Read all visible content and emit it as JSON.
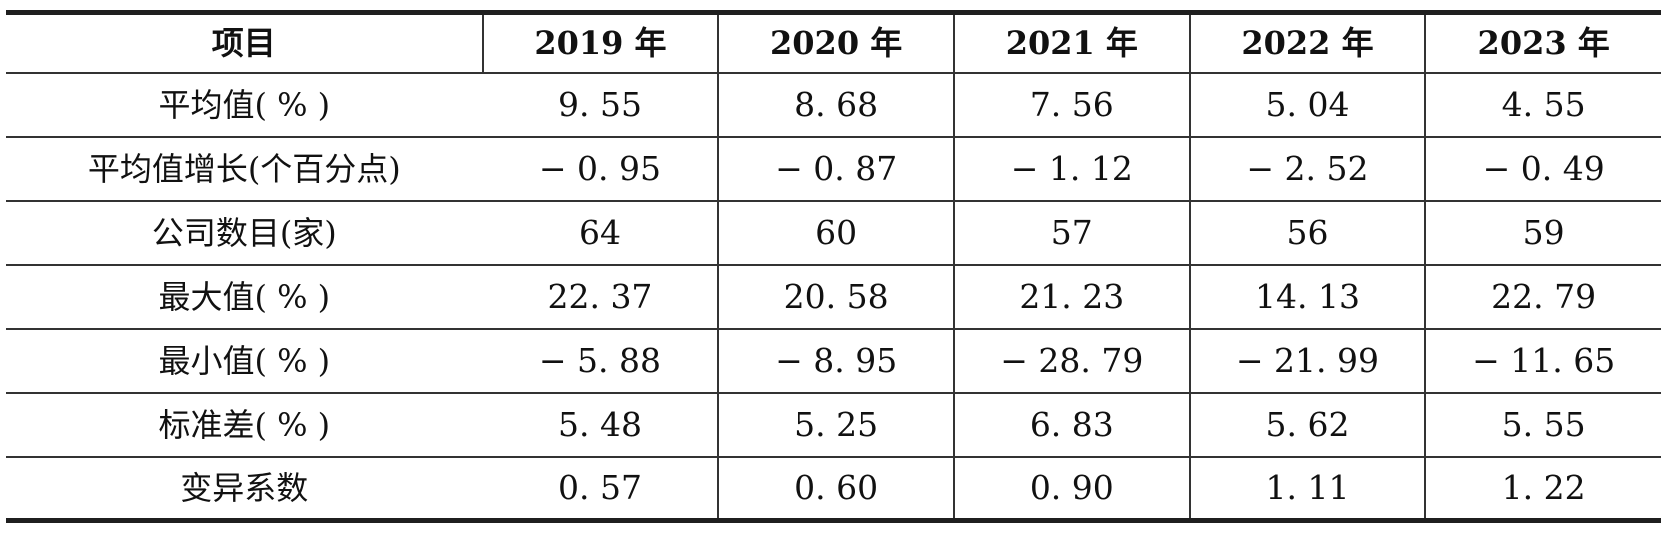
{
  "table": {
    "columns": [
      "项目",
      "2019 年",
      "2020 年",
      "2021 年",
      "2022 年",
      "2023 年"
    ],
    "rows": [
      {
        "label": "平均值( % )",
        "values": [
          "9. 55",
          "8. 68",
          "7. 56",
          "5. 04",
          "4. 55"
        ]
      },
      {
        "label": "平均值增长(个百分点)",
        "values": [
          "− 0. 95",
          "− 0. 87",
          "− 1. 12",
          "− 2. 52",
          "− 0. 49"
        ]
      },
      {
        "label": "公司数目(家)",
        "values": [
          "64",
          "60",
          "57",
          "56",
          "59"
        ]
      },
      {
        "label": "最大值( % )",
        "values": [
          "22. 37",
          "20. 58",
          "21. 23",
          "14. 13",
          "22. 79"
        ]
      },
      {
        "label": "最小值( % )",
        "values": [
          "− 5. 88",
          "− 8. 95",
          "− 28. 79",
          "− 21. 99",
          "− 11. 65"
        ]
      },
      {
        "label": "标准差( % )",
        "values": [
          "5. 48",
          "5. 25",
          "6. 83",
          "5. 62",
          "5. 55"
        ]
      },
      {
        "label": "变异系数",
        "values": [
          "0. 57",
          "0. 60",
          "0. 90",
          "1. 11",
          "1. 22"
        ]
      }
    ],
    "styles": {
      "text_color": "#111111",
      "inner_border_color": "#333333",
      "outer_border_color": "#1f1f1f",
      "background": "#ffffff"
    }
  }
}
